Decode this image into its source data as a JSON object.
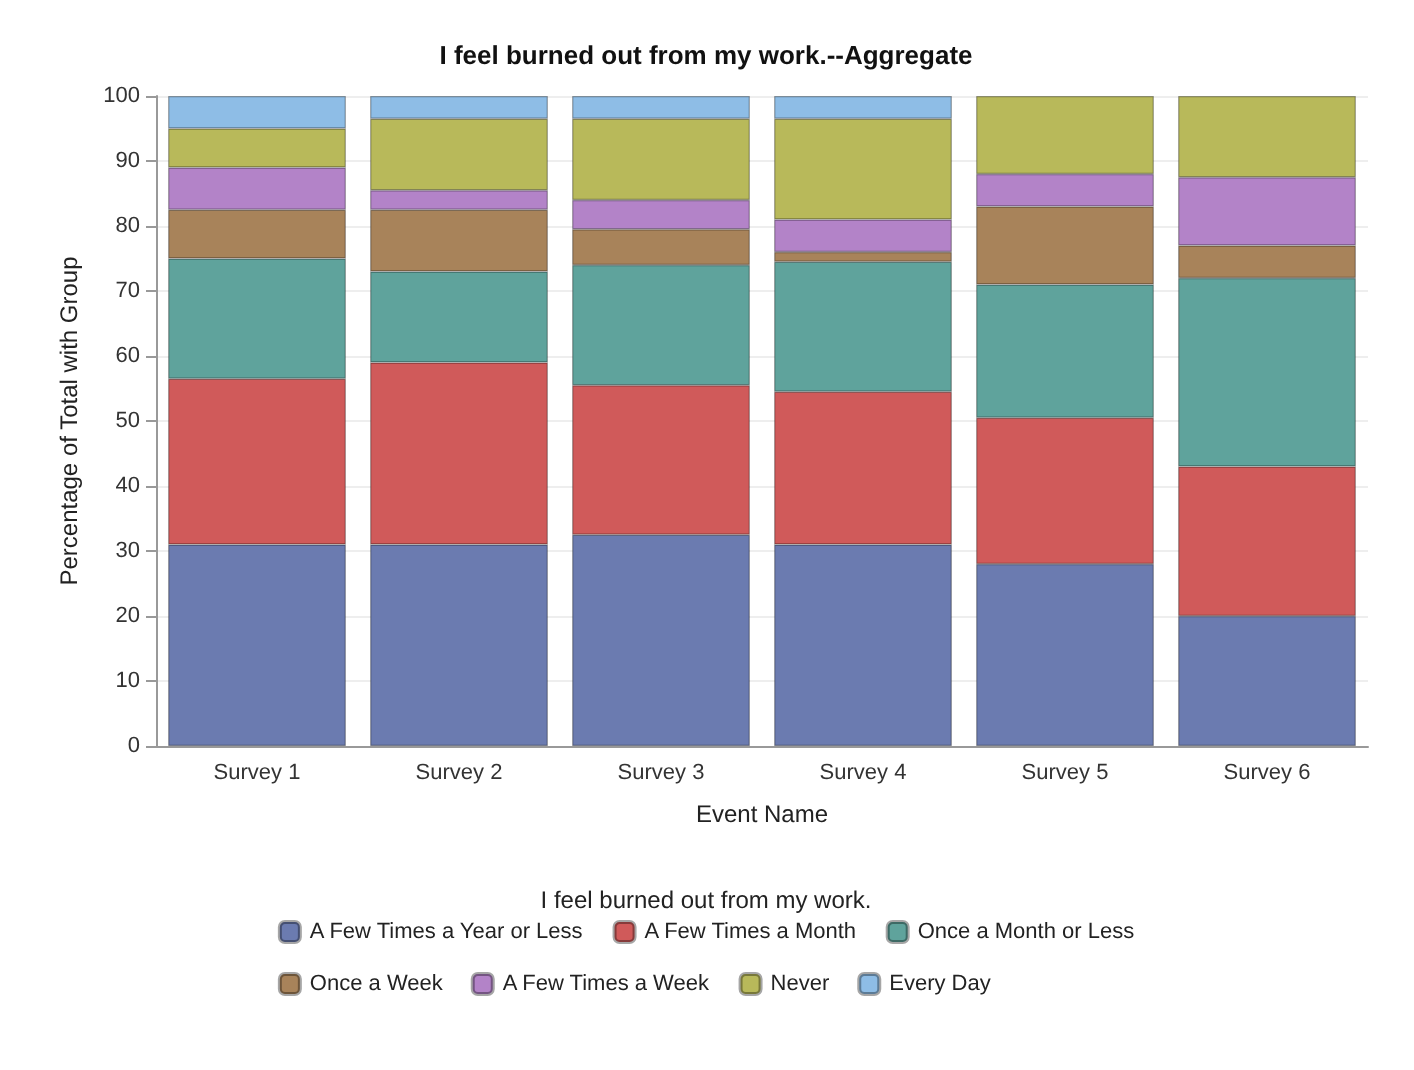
{
  "chart_data": {
    "type": "bar",
    "stacked": true,
    "title": "I feel burned out from my work.--Aggregate",
    "xlabel": "Event Name",
    "ylabel": "Percentage of Total with Group",
    "legend_title": "I feel burned out from my work.",
    "categories": [
      "Survey 1",
      "Survey 2",
      "Survey 3",
      "Survey 4",
      "Survey 5",
      "Survey 6"
    ],
    "series": [
      {
        "name": "A Few Times a Year or Less",
        "color": "#6b7bb0",
        "values": [
          31,
          31,
          32.5,
          31,
          28,
          20
        ]
      },
      {
        "name": "A Few Times a Month",
        "color": "#d05a5a",
        "values": [
          25.5,
          28,
          23,
          23.5,
          22.5,
          23
        ]
      },
      {
        "name": "Once a Month or Less",
        "color": "#5fa39c",
        "values": [
          18.5,
          14,
          18.5,
          20,
          20.5,
          29
        ]
      },
      {
        "name": "Once a Week",
        "color": "#a8835a",
        "values": [
          7.5,
          9.5,
          5.5,
          1.5,
          12,
          5
        ]
      },
      {
        "name": "A Few Times a Week",
        "color": "#b383c8",
        "values": [
          6.5,
          3,
          4.5,
          5,
          5,
          10.5
        ]
      },
      {
        "name": "Never",
        "color": "#b8b95a",
        "values": [
          6,
          11,
          12.5,
          15.5,
          12,
          12.5
        ]
      },
      {
        "name": "Every Day",
        "color": "#8ebde6",
        "values": [
          5,
          3.5,
          3.5,
          3.5,
          null,
          null
        ]
      }
    ],
    "ylim": [
      0,
      100
    ],
    "yticks": [
      0,
      10,
      20,
      30,
      40,
      50,
      60,
      70,
      80,
      90,
      100
    ],
    "grid": "y",
    "legend": "bottom"
  }
}
